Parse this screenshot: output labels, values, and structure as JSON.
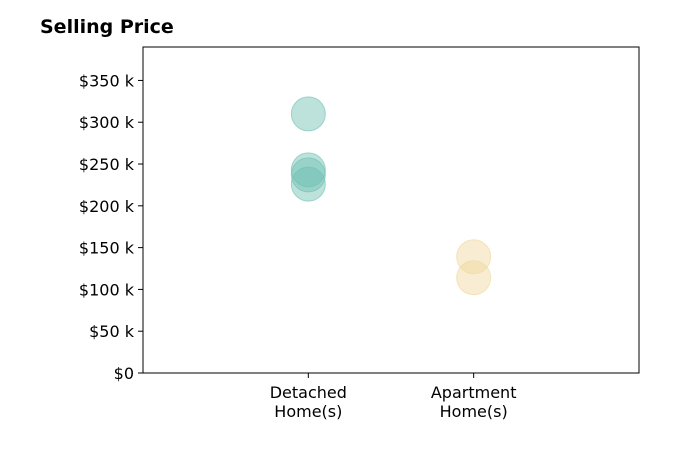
{
  "chart_data": {
    "type": "scatter",
    "title": "Selling Price",
    "xlabel": "",
    "ylabel": "",
    "categories": [
      [
        "Detached",
        "Home(s)"
      ],
      [
        "Apartment",
        "Home(s)"
      ]
    ],
    "xlim": [
      -1,
      2
    ],
    "ylim": [
      0,
      390000
    ],
    "yticks": [
      0,
      50000,
      100000,
      150000,
      200000,
      250000,
      300000,
      350000
    ],
    "ytick_labels": [
      "$0",
      "$50 k",
      "$100 k",
      "$150 k",
      "$200 k",
      "$250 k",
      "$300 k",
      "$350 k"
    ],
    "grid": false,
    "series": [
      {
        "category_index": 0,
        "color": "#6dbfb2",
        "values": [
          310000,
          243000,
          237000,
          226000
        ]
      },
      {
        "category_index": 1,
        "color": "#efd69b",
        "values": [
          139000,
          114000
        ]
      }
    ]
  }
}
